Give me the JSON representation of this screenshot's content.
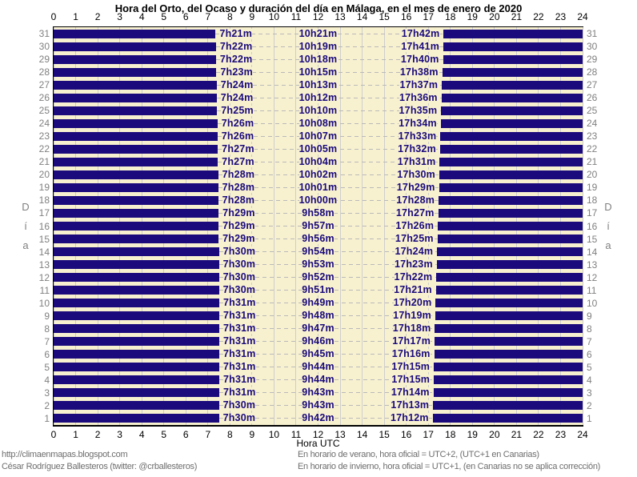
{
  "title": "Hora del Orto, del Ocaso y duración del día en Málaga, en el mes de enero de 2020",
  "axis": {
    "x_label": "Hora UTC",
    "y_label": "Día",
    "x_ticks": [
      0,
      1,
      2,
      3,
      4,
      5,
      6,
      7,
      8,
      9,
      10,
      11,
      12,
      13,
      14,
      15,
      16,
      17,
      18,
      19,
      20,
      21,
      22,
      23,
      24
    ]
  },
  "footer": {
    "left_lines": [
      "http://climaenmapas.blogspot.com",
      "César Rodríguez Ballesteros (twitter: @crballesteros)"
    ],
    "right_lines": [
      "En horario de verano, hora oficial = UTC+2, (UTC+1 en Canarias)",
      "En horario de invierno, hora oficial = UTC+1, (en Canarias no se aplica corrección)"
    ]
  },
  "colors": {
    "night": "#1a0a7c",
    "day_bg": "#f8f1d0",
    "grid": "#cdcdcd",
    "dash": "#b9b9b9",
    "time_label_text": "#1a0a7c",
    "day_number_text": "#808080",
    "dia_text": "#808080",
    "footer_text": "#6e6e6e",
    "axis_text": "#000000"
  },
  "chart_data": {
    "type": "bar",
    "orientation": "horizontal",
    "x_range": [
      0,
      24
    ],
    "days_range": [
      1,
      31
    ],
    "grid": true,
    "days": [
      {
        "day": 31,
        "sunrise": "7h21m",
        "duration": "10h21m",
        "sunset": "17h42m"
      },
      {
        "day": 30,
        "sunrise": "7h22m",
        "duration": "10h19m",
        "sunset": "17h41m"
      },
      {
        "day": 29,
        "sunrise": "7h22m",
        "duration": "10h18m",
        "sunset": "17h40m"
      },
      {
        "day": 28,
        "sunrise": "7h23m",
        "duration": "10h15m",
        "sunset": "17h38m"
      },
      {
        "day": 27,
        "sunrise": "7h24m",
        "duration": "10h13m",
        "sunset": "17h37m"
      },
      {
        "day": 26,
        "sunrise": "7h24m",
        "duration": "10h12m",
        "sunset": "17h36m"
      },
      {
        "day": 25,
        "sunrise": "7h25m",
        "duration": "10h10m",
        "sunset": "17h35m"
      },
      {
        "day": 24,
        "sunrise": "7h26m",
        "duration": "10h08m",
        "sunset": "17h34m"
      },
      {
        "day": 23,
        "sunrise": "7h26m",
        "duration": "10h07m",
        "sunset": "17h33m"
      },
      {
        "day": 22,
        "sunrise": "7h27m",
        "duration": "10h05m",
        "sunset": "17h32m"
      },
      {
        "day": 21,
        "sunrise": "7h27m",
        "duration": "10h04m",
        "sunset": "17h31m"
      },
      {
        "day": 20,
        "sunrise": "7h28m",
        "duration": "10h02m",
        "sunset": "17h30m"
      },
      {
        "day": 19,
        "sunrise": "7h28m",
        "duration": "10h01m",
        "sunset": "17h29m"
      },
      {
        "day": 18,
        "sunrise": "7h28m",
        "duration": "10h00m",
        "sunset": "17h28m"
      },
      {
        "day": 17,
        "sunrise": "7h29m",
        "duration": "9h58m",
        "sunset": "17h27m"
      },
      {
        "day": 16,
        "sunrise": "7h29m",
        "duration": "9h57m",
        "sunset": "17h26m"
      },
      {
        "day": 15,
        "sunrise": "7h29m",
        "duration": "9h56m",
        "sunset": "17h25m"
      },
      {
        "day": 14,
        "sunrise": "7h30m",
        "duration": "9h54m",
        "sunset": "17h24m"
      },
      {
        "day": 13,
        "sunrise": "7h30m",
        "duration": "9h53m",
        "sunset": "17h23m"
      },
      {
        "day": 12,
        "sunrise": "7h30m",
        "duration": "9h52m",
        "sunset": "17h22m"
      },
      {
        "day": 11,
        "sunrise": "7h30m",
        "duration": "9h51m",
        "sunset": "17h21m"
      },
      {
        "day": 10,
        "sunrise": "7h31m",
        "duration": "9h49m",
        "sunset": "17h20m"
      },
      {
        "day": 9,
        "sunrise": "7h31m",
        "duration": "9h48m",
        "sunset": "17h19m"
      },
      {
        "day": 8,
        "sunrise": "7h31m",
        "duration": "9h47m",
        "sunset": "17h18m"
      },
      {
        "day": 7,
        "sunrise": "7h31m",
        "duration": "9h46m",
        "sunset": "17h17m"
      },
      {
        "day": 6,
        "sunrise": "7h31m",
        "duration": "9h45m",
        "sunset": "17h16m"
      },
      {
        "day": 5,
        "sunrise": "7h31m",
        "duration": "9h44m",
        "sunset": "17h15m"
      },
      {
        "day": 4,
        "sunrise": "7h31m",
        "duration": "9h44m",
        "sunset": "17h15m"
      },
      {
        "day": 3,
        "sunrise": "7h31m",
        "duration": "9h43m",
        "sunset": "17h14m"
      },
      {
        "day": 2,
        "sunrise": "7h30m",
        "duration": "9h43m",
        "sunset": "17h13m"
      },
      {
        "day": 1,
        "sunrise": "7h30m",
        "duration": "9h42m",
        "sunset": "17h12m"
      }
    ]
  }
}
